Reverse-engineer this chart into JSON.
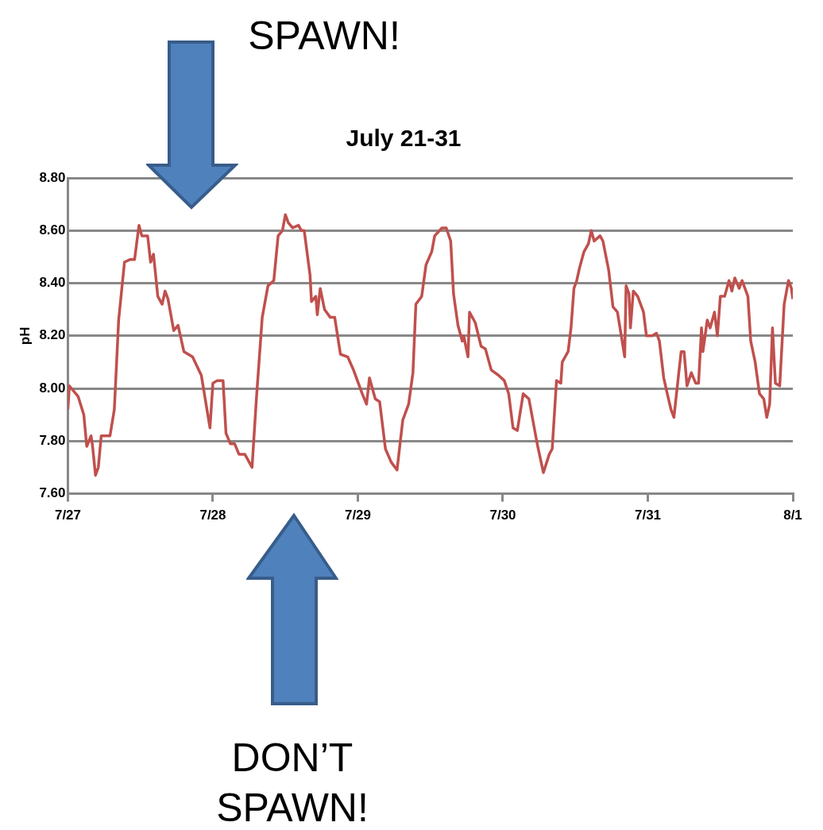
{
  "chart_data": {
    "type": "line",
    "title": "July 21-31",
    "ylabel": "pH",
    "annotations": [
      "SPAWN!",
      "DON’T SPAWN!"
    ],
    "x": [
      "--07-27T00:00",
      "--07-27T00:14",
      "--07-27T01:41",
      "--07-27T02:38",
      "--07-27T03:07",
      "--07-27T03:50",
      "--07-27T04:05",
      "--07-27T04:34",
      "--07-27T05:02",
      "--07-27T05:31",
      "--07-27T06:58",
      "--07-27T07:41",
      "--07-27T08:24",
      "--07-27T09:22",
      "--07-27T10:19",
      "--07-27T11:02",
      "--07-27T11:46",
      "--07-27T12:14",
      "--07-27T13:12",
      "--07-27T13:41",
      "--07-27T14:10",
      "--07-27T14:53",
      "--07-27T15:36",
      "--07-27T16:05",
      "--07-27T16:34",
      "--07-27T17:31",
      "--07-27T18:14",
      "--07-27T19:12",
      "--07-27T20:38",
      "--07-27T22:05",
      "--07-27T23:31",
      "--07-28T00:00",
      "--07-28T00:43",
      "--07-28T01:41",
      "--07-28T02:10",
      "--07-28T02:53",
      "--07-28T03:36",
      "--07-28T04:19",
      "--07-28T05:17",
      "--07-28T06:29",
      "--07-28T07:12",
      "--07-28T08:10",
      "--07-28T09:07",
      "--07-28T10:05",
      "--07-28T10:48",
      "--07-28T11:31",
      "--07-28T12:00",
      "--07-28T12:29",
      "--07-28T13:12",
      "--07-28T14:10",
      "--07-28T14:38",
      "--07-28T15:07",
      "--07-28T16:05",
      "--07-28T16:19",
      "--07-28T17:02",
      "--07-28T17:17",
      "--07-28T17:46",
      "--07-28T18:29",
      "--07-28T19:26",
      "--07-28T20:10",
      "--07-28T21:07",
      "--07-28T22:19",
      "--07-28T23:17",
      "--07-29T00:43",
      "--07-29T01:26",
      "--07-29T01:55",
      "--07-29T02:53",
      "--07-29T03:36",
      "--07-29T04:34",
      "--07-29T05:31",
      "--07-29T06:29",
      "--07-29T07:26",
      "--07-29T08:24",
      "--07-29T09:07",
      "--07-29T09:36",
      "--07-29T10:34",
      "--07-29T11:17",
      "--07-29T12:14",
      "--07-29T12:43",
      "--07-29T13:55",
      "--07-29T14:38",
      "--07-29T15:22",
      "--07-29T15:50",
      "--07-29T16:34",
      "--07-29T17:17",
      "--07-29T17:31",
      "--07-29T18:14",
      "--07-29T18:29",
      "--07-29T19:26",
      "--07-29T20:24",
      "--07-29T21:07",
      "--07-29T22:05",
      "--07-29T23:17",
      "--07-30T00:14",
      "--07-30T00:58",
      "--07-30T01:41",
      "--07-30T02:24",
      "--07-30T03:22",
      "--07-30T04:19",
      "--07-30T05:46",
      "--07-30T06:43",
      "--07-30T07:41",
      "--07-30T08:10",
      "--07-30T08:53",
      "--07-30T09:36",
      "--07-30T09:50",
      "--07-30T10:48",
      "--07-30T11:17",
      "--07-30T11:46",
      "--07-30T12:14",
      "--07-30T12:43",
      "--07-30T13:26",
      "--07-30T14:10",
      "--07-30T14:38",
      "--07-30T15:07",
      "--07-30T16:05",
      "--07-30T16:34",
      "--07-30T17:31",
      "--07-30T18:14",
      "--07-30T18:58",
      "--07-30T19:41",
      "--07-30T20:10",
      "--07-30T20:24",
      "--07-30T20:53",
      "--07-30T21:07",
      "--07-30T21:36",
      "--07-30T22:19",
      "--07-30T23:17",
      "--07-30T23:46",
      "--07-31T00:43",
      "--07-31T01:26",
      "--07-31T01:55",
      "--07-31T02:38",
      "--07-31T03:07",
      "--07-31T03:50",
      "--07-31T04:19",
      "--07-31T05:02",
      "--07-31T05:31",
      "--07-31T06:00",
      "--07-31T06:29",
      "--07-31T07:12",
      "--07-31T07:55",
      "--07-31T08:24",
      "--07-31T08:53",
      "--07-31T09:07",
      "--07-31T09:50",
      "--07-31T10:19",
      "--07-31T11:02",
      "--07-31T11:31",
      "--07-31T12:00",
      "--07-31T12:43",
      "--07-31T13:26",
      "--07-31T13:55",
      "--07-31T14:24",
      "--07-31T15:07",
      "--07-31T15:36",
      "--07-31T16:34",
      "--07-31T17:02",
      "--07-31T17:46",
      "--07-31T18:29",
      "--07-31T19:12",
      "--07-31T19:41",
      "--07-31T20:10",
      "--07-31T20:38",
      "--07-31T21:07",
      "--07-31T21:50",
      "--07-31T22:34",
      "--07-31T23:17",
      "--07-31T23:46",
      "--08-01T00:00"
    ],
    "series": [
      {
        "color": "#c0504d",
        "values": [
          7.92,
          8.01,
          7.97,
          7.9,
          7.78,
          7.82,
          7.78,
          7.67,
          7.7,
          7.82,
          7.82,
          7.92,
          8.26,
          8.48,
          8.49,
          8.49,
          8.62,
          8.58,
          8.58,
          8.48,
          8.51,
          8.35,
          8.32,
          8.37,
          8.34,
          8.22,
          8.24,
          8.14,
          8.12,
          8.05,
          7.85,
          8.02,
          8.03,
          8.03,
          7.83,
          7.79,
          7.79,
          7.75,
          7.75,
          7.7,
          7.96,
          8.27,
          8.39,
          8.41,
          8.58,
          8.6,
          8.66,
          8.63,
          8.61,
          8.62,
          8.6,
          8.6,
          8.43,
          8.33,
          8.35,
          8.28,
          8.38,
          8.3,
          8.27,
          8.27,
          8.13,
          8.12,
          8.07,
          7.98,
          7.94,
          8.04,
          7.96,
          7.95,
          7.77,
          7.72,
          7.69,
          7.88,
          7.94,
          8.06,
          8.32,
          8.35,
          8.47,
          8.52,
          8.58,
          8.61,
          8.61,
          8.56,
          8.36,
          8.24,
          8.18,
          8.2,
          8.12,
          8.29,
          8.25,
          8.16,
          8.15,
          8.07,
          8.05,
          8.03,
          7.98,
          7.85,
          7.84,
          7.98,
          7.96,
          7.78,
          7.68,
          7.75,
          7.77,
          8.03,
          8.02,
          8.1,
          8.14,
          8.23,
          8.38,
          8.41,
          8.46,
          8.52,
          8.55,
          8.6,
          8.56,
          8.58,
          8.56,
          8.45,
          8.31,
          8.29,
          8.19,
          8.12,
          8.39,
          8.36,
          8.23,
          8.37,
          8.35,
          8.29,
          8.2,
          8.2,
          8.21,
          8.18,
          8.04,
          7.99,
          7.92,
          7.89,
          8.04,
          8.14,
          8.14,
          8.01,
          8.06,
          8.02,
          8.02,
          8.23,
          8.14,
          8.26,
          8.23,
          8.29,
          8.2,
          8.35,
          8.35,
          8.41,
          8.37,
          8.42,
          8.38,
          8.41,
          8.35,
          8.18,
          8.1,
          7.98,
          7.96,
          7.89,
          7.94,
          8.23,
          8.02,
          8.01,
          8.32,
          8.41,
          8.38,
          8.34
        ]
      }
    ],
    "xlim": [
      "--07-27",
      "--08-01"
    ],
    "xticks": [
      {
        "value": "--07-27",
        "label": "7/27"
      },
      {
        "value": "--07-28",
        "label": "7/28"
      },
      {
        "value": "--07-29",
        "label": "7/29"
      },
      {
        "value": "--07-30",
        "label": "7/30"
      },
      {
        "value": "--07-31",
        "label": "7/31"
      },
      {
        "value": "--08-01",
        "label": "8/1"
      }
    ],
    "ylim": [
      7.6,
      8.8
    ],
    "yticks": [
      {
        "value": 7.6,
        "label": "7.60"
      },
      {
        "value": 7.8,
        "label": "7.80"
      },
      {
        "value": 8.0,
        "label": "8.00"
      },
      {
        "value": 8.2,
        "label": "8.20"
      },
      {
        "value": 8.4,
        "label": "8.40"
      },
      {
        "value": 8.6,
        "label": "8.60"
      },
      {
        "value": 8.8,
        "label": "8.80"
      }
    ],
    "grid": "y",
    "legend": false,
    "marker": "none",
    "line_style": "solid"
  }
}
